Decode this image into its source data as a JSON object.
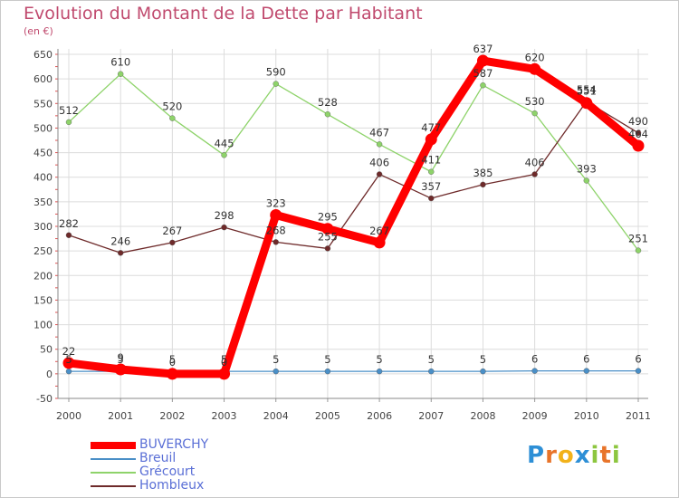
{
  "chart_data": {
    "type": "line",
    "title": "Evolution du Montant de la Dette par Habitant",
    "subtitle": "(en €)",
    "x": [
      "2000",
      "2001",
      "2002",
      "2003",
      "2004",
      "2005",
      "2006",
      "2007",
      "2008",
      "2009",
      "2010",
      "2011"
    ],
    "ylim": [
      -50,
      650
    ],
    "yticks": [
      -50,
      0,
      50,
      100,
      150,
      200,
      250,
      300,
      350,
      400,
      450,
      500,
      550,
      600,
      650
    ],
    "grid": true,
    "legend_position": "bottom-left",
    "series": [
      {
        "name": "BUVERCHY",
        "color": "#ff0000",
        "values": [
          22,
          9,
          0,
          0,
          323,
          295,
          267,
          477,
          637,
          620,
          551,
          464
        ]
      },
      {
        "name": "Breuil",
        "color": "#4a8fc7",
        "values": [
          5,
          5,
          5,
          5,
          5,
          5,
          5,
          5,
          5,
          6,
          6,
          6
        ]
      },
      {
        "name": "Grécourt",
        "color": "#8ed36a",
        "values": [
          512,
          610,
          520,
          445,
          590,
          528,
          467,
          411,
          587,
          530,
          393,
          251
        ]
      },
      {
        "name": "Hombleux",
        "color": "#6e2a2a",
        "values": [
          282,
          246,
          267,
          298,
          268,
          255,
          406,
          357,
          385,
          406,
          554,
          490
        ]
      }
    ]
  },
  "brand": {
    "letters": [
      "P",
      "r",
      "o",
      "x",
      "i",
      "t",
      "i"
    ],
    "colors": [
      "#2d8fd6",
      "#e8742a",
      "#f2b21a",
      "#2d8fd6",
      "#8dc63f",
      "#e8742a",
      "#8dc63f"
    ]
  }
}
